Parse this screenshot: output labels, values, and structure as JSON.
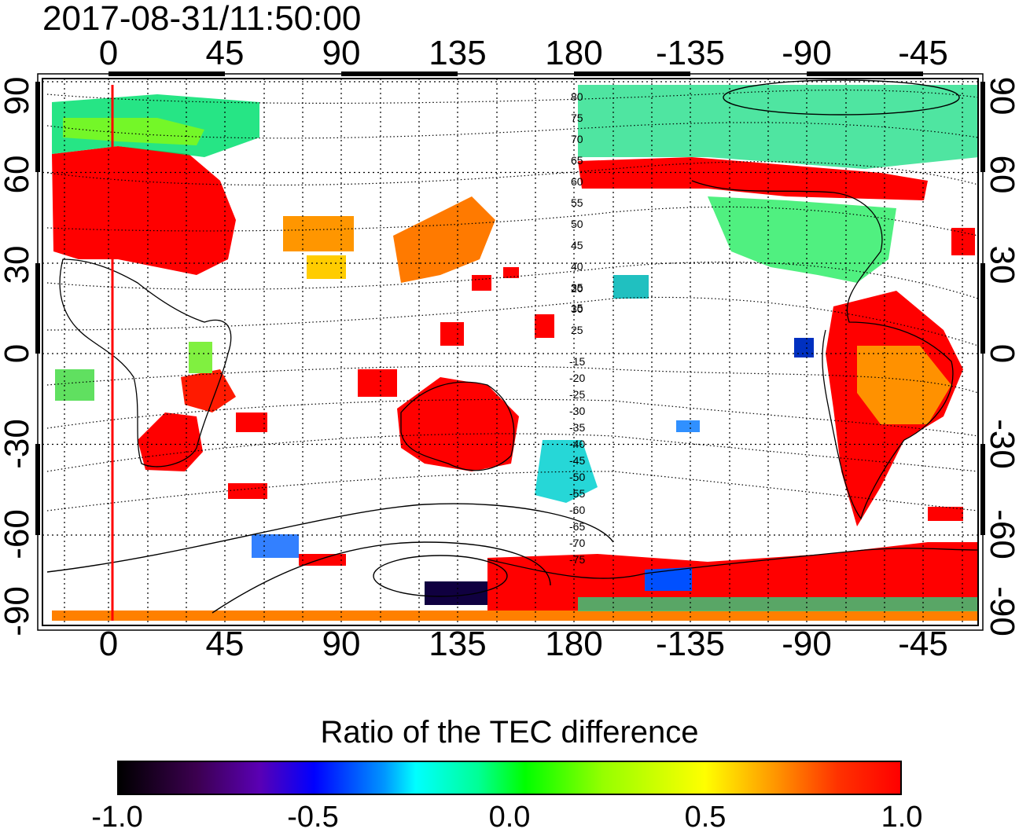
{
  "timestamp": "2017-08-31/11:50:00",
  "axes": {
    "top_ticks": [
      "0",
      "45",
      "90",
      "135",
      "180",
      "-135",
      "-90",
      "-45"
    ],
    "bottom_ticks": [
      "0",
      "45",
      "90",
      "135",
      "180",
      "-135",
      "-90",
      "-45"
    ],
    "left_ticks": [
      "90",
      "60",
      "30",
      "0",
      "-30",
      "-60",
      "-90"
    ],
    "right_ticks": [
      "90",
      "60",
      "30",
      "0",
      "-30",
      "-60",
      "-90"
    ]
  },
  "contour_labels": [
    "80",
    "75",
    "70",
    "65",
    "60",
    "55",
    "50",
    "45",
    "40",
    "35",
    "30",
    "25",
    "20",
    "15",
    "-15",
    "-20",
    "-25",
    "-30",
    "-35",
    "-40",
    "-45",
    "-50",
    "-55",
    "-60",
    "-65",
    "-70",
    "-75"
  ],
  "colorbar": {
    "title": "Ratio of the TEC difference",
    "labels": [
      "-1.0",
      "-0.5",
      "0.0",
      "0.5",
      "1.0"
    ],
    "min": -1.0,
    "max": 1.0
  },
  "colors": {
    "high_positive": "#ff0000",
    "moderate_positive": "#ff9600",
    "neutral": "#00ff64",
    "negative": "#0064ff",
    "reference_line": "#ff0000"
  }
}
